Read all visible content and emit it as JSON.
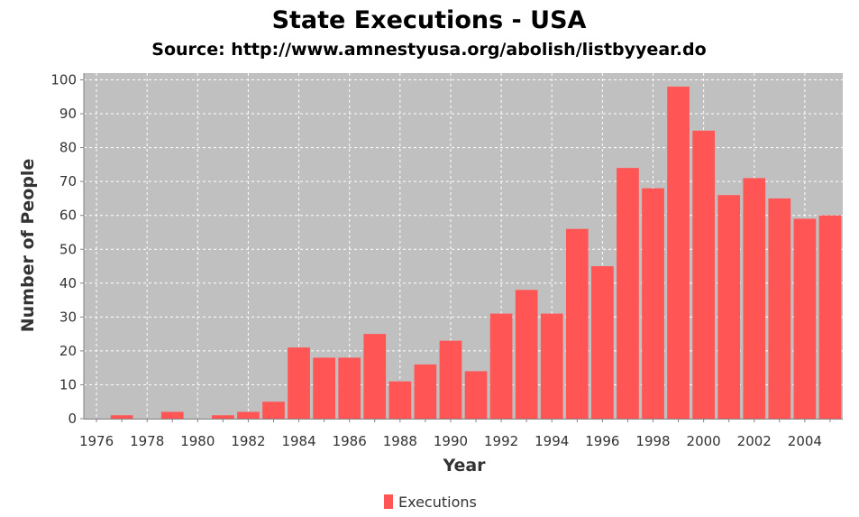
{
  "chart_data": {
    "type": "bar",
    "title": "State Executions - USA",
    "subtitle": "Source: http://www.amnestyusa.org/abolish/listbyyear.do",
    "xlabel": "Year",
    "ylabel": "Number of People",
    "ylim": [
      0,
      102
    ],
    "yticks": [
      0,
      10,
      20,
      30,
      40,
      50,
      60,
      70,
      80,
      90,
      100
    ],
    "grid": true,
    "legend_position": "bottom",
    "categories": [
      "1976",
      "1977",
      "1978",
      "1979",
      "1980",
      "1981",
      "1982",
      "1983",
      "1984",
      "1985",
      "1986",
      "1987",
      "1988",
      "1989",
      "1990",
      "1991",
      "1992",
      "1993",
      "1994",
      "1995",
      "1996",
      "1997",
      "1998",
      "1999",
      "2000",
      "2001",
      "2002",
      "2003",
      "2004",
      "2005"
    ],
    "x_tick_labels": [
      "1976",
      "1978",
      "1980",
      "1982",
      "1984",
      "1986",
      "1988",
      "1990",
      "1992",
      "1994",
      "1996",
      "1998",
      "2000",
      "2002",
      "2004"
    ],
    "series": [
      {
        "name": "Executions",
        "color": "#ff5555",
        "values": [
          0,
          1,
          0,
          2,
          0,
          1,
          2,
          5,
          21,
          18,
          18,
          25,
          11,
          16,
          23,
          14,
          31,
          38,
          31,
          56,
          45,
          74,
          68,
          98,
          85,
          66,
          71,
          65,
          59,
          60
        ]
      }
    ],
    "plot_background": "#c0c0c0",
    "grid_color": "#ffffff"
  }
}
